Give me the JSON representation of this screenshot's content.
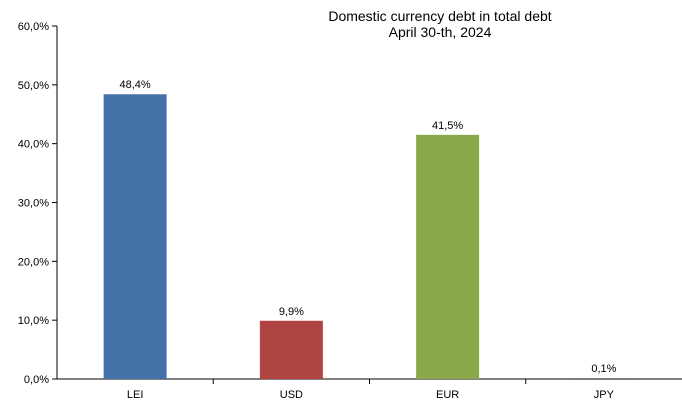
{
  "chart_data": {
    "type": "bar",
    "title_lines": [
      "Domestic currency debt  in total debt",
      "April 30-th, 2024"
    ],
    "categories": [
      "LEI",
      "USD",
      "EUR",
      "JPY"
    ],
    "values": [
      48.4,
      9.9,
      41.5,
      0.1
    ],
    "value_labels": [
      "48,4%",
      "9,9%",
      "41,5%",
      "0,1%"
    ],
    "colors": [
      "#4472a8",
      "#b04442",
      "#88a84a",
      "#7a7a7a"
    ],
    "ylim": [
      0,
      60
    ],
    "y_ticks": [
      "0,0%",
      "10,0%",
      "20,0%",
      "30,0%",
      "40,0%",
      "50,0%",
      "60,0%"
    ],
    "grid": false,
    "xlabel": "",
    "ylabel": ""
  }
}
